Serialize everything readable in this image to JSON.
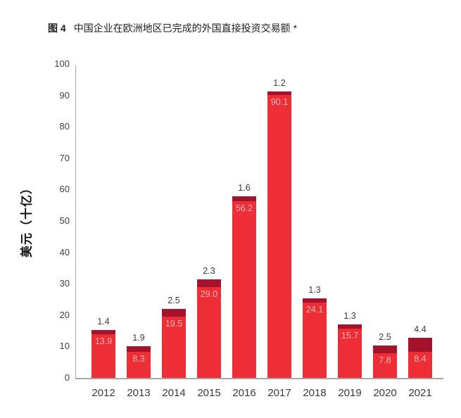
{
  "figure": {
    "label": "图 4",
    "title": "中国企业在欧洲地区已完成的外国直接投资交易额 *"
  },
  "chart_data": {
    "type": "bar",
    "stacked": true,
    "title": "图 4 中国企业在欧洲地区已完成的外国直接投资交易额 *",
    "xlabel": "",
    "ylabel": "美元（十亿）",
    "ylim": [
      0,
      100
    ],
    "ytick_step": 10,
    "grid": false,
    "legend": "none",
    "categories": [
      "2012",
      "2013",
      "2014",
      "2015",
      "2016",
      "2017",
      "2018",
      "2019",
      "2020",
      "2021"
    ],
    "series": [
      {
        "name": "base-segment",
        "color": "#ee2e36",
        "value_label_color": "#f5b6ba",
        "label_position": "inside-top",
        "values": [
          13.9,
          8.3,
          19.5,
          29.0,
          56.2,
          90.1,
          24.1,
          15.7,
          7.8,
          8.4
        ]
      },
      {
        "name": "cap-segment",
        "color": "#a5122b",
        "value_label_color": "#3a3a3a",
        "label_position": "above-bar",
        "values": [
          1.4,
          1.9,
          2.5,
          2.3,
          1.6,
          1.2,
          1.3,
          1.3,
          2.5,
          4.4
        ]
      }
    ]
  },
  "style": {
    "axis_color": "#a8a8a8",
    "tick_label_color": "#3f3f3f",
    "category_label_color": "#3a3a3a",
    "background": "#ffffff"
  }
}
